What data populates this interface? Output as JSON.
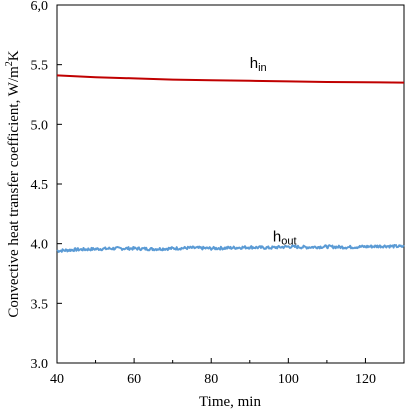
{
  "chart_data": {
    "type": "line",
    "xlabel": "Time, min",
    "ylabel": "Convective heat transfer coefficient,  W/m",
    "ylabel_sup": "2",
    "ylabel_tail": "K",
    "xlim": [
      40,
      130
    ],
    "ylim": [
      3.0,
      6.0
    ],
    "x_ticks": [
      40,
      60,
      80,
      100,
      120
    ],
    "x_tick_labels": [
      "40",
      "60",
      "80",
      "100",
      "120"
    ],
    "y_ticks": [
      3.0,
      3.5,
      4.0,
      4.5,
      5.0,
      5.5,
      6.0
    ],
    "y_tick_labels": [
      "3.0",
      "3.5",
      "4.0",
      "4.5",
      "5.0",
      "5.5",
      "6,0"
    ],
    "x_minor_step": 10,
    "grid": false,
    "legend": "none",
    "series": [
      {
        "name": "h",
        "subscript": "in",
        "color": "#c00000",
        "label_at": [
          90,
          5.47
        ],
        "x": [
          40,
          50,
          60,
          70,
          80,
          90,
          100,
          110,
          120,
          130
        ],
        "y": [
          5.41,
          5.395,
          5.385,
          5.375,
          5.37,
          5.365,
          5.36,
          5.355,
          5.352,
          5.35
        ]
      },
      {
        "name": "h",
        "subscript": "out",
        "color": "#5b9bd5",
        "label_at": [
          96,
          4.02
        ],
        "x": [
          40,
          45,
          50,
          55,
          60,
          65,
          70,
          75,
          80,
          85,
          90,
          95,
          100,
          105,
          110,
          115,
          120,
          125,
          130
        ],
        "y": [
          3.94,
          3.95,
          3.955,
          3.96,
          3.96,
          3.955,
          3.96,
          3.965,
          3.96,
          3.965,
          3.97,
          3.965,
          3.975,
          3.97,
          3.975,
          3.97,
          3.975,
          3.98,
          3.975
        ]
      }
    ]
  }
}
